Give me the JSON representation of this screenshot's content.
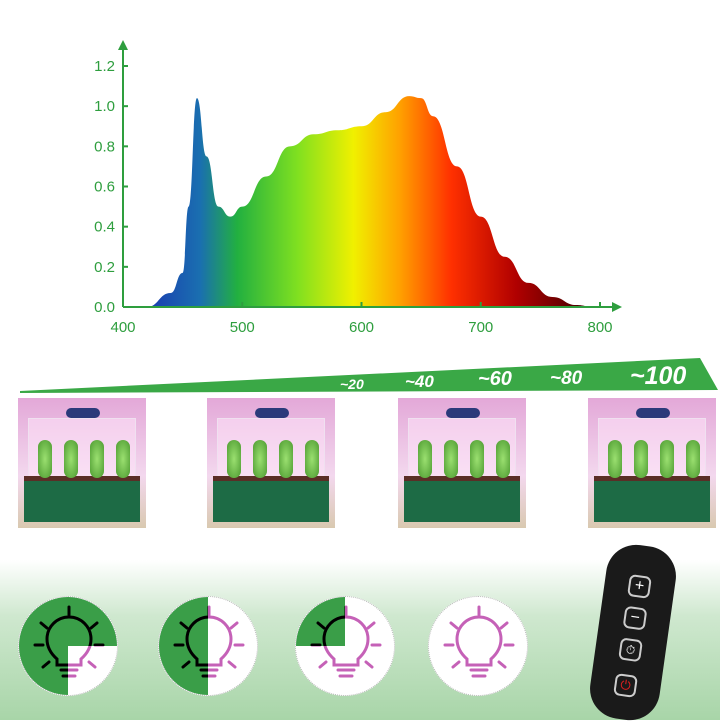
{
  "chart_data": {
    "type": "area",
    "title": "",
    "xlabel": "",
    "ylabel": "",
    "xlim": [
      400,
      800
    ],
    "ylim": [
      0,
      1.2
    ],
    "x_ticks": [
      "400",
      "500",
      "600",
      "700",
      "800"
    ],
    "y_ticks": [
      "0.0",
      "0.2",
      "0.4",
      "0.6",
      "0.8",
      "1.0",
      "1.2"
    ],
    "grid": false,
    "axis_color": "#2e9e3e",
    "series": [
      {
        "x": [
          420,
          440,
          450,
          455,
          462,
          470,
          480,
          490,
          500,
          520,
          540,
          560,
          580,
          600,
          620,
          640,
          650,
          660,
          680,
          700,
          720,
          740,
          760,
          780,
          795
        ],
        "values": [
          0,
          0.07,
          0.17,
          0.5,
          1.04,
          0.75,
          0.5,
          0.45,
          0.5,
          0.65,
          0.8,
          0.86,
          0.88,
          0.9,
          0.97,
          1.05,
          1.04,
          0.95,
          0.7,
          0.45,
          0.25,
          0.12,
          0.05,
          0.01,
          0
        ]
      }
    ]
  },
  "dimming": {
    "levels": [
      "~20",
      "~40",
      "~60",
      "~80",
      "~100"
    ],
    "ramp_color": "#3aa846"
  },
  "brightness_icons": [
    {
      "fill_quarters": 3
    },
    {
      "fill_quarters": 2
    },
    {
      "fill_quarters": 1
    },
    {
      "fill_quarters": 0
    }
  ],
  "remote": {
    "buttons": [
      "+",
      "−",
      "⏱",
      "⏻"
    ]
  }
}
